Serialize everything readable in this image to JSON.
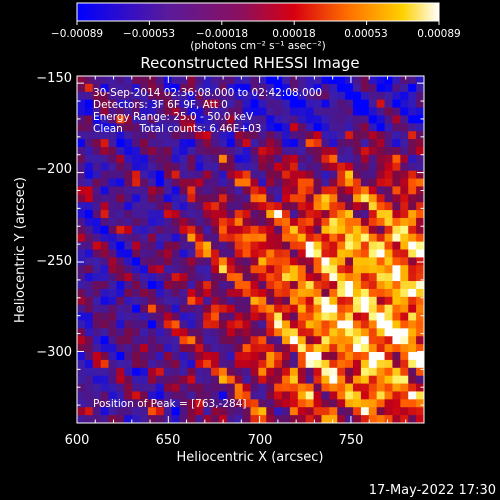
{
  "chart_data": {
    "type": "heatmap",
    "title": "Reconstructed RHESSI Image",
    "xlabel": "Heliocentric X (arcsec)",
    "ylabel": "Heliocentric Y (arcsec)",
    "xlim": [
      600,
      790
    ],
    "ylim": [
      -340,
      -146
    ],
    "xticks": [
      "600",
      "650",
      "700",
      "750"
    ],
    "yticks": [
      "−150",
      "−200",
      "−250",
      "−300"
    ],
    "colorbar": {
      "ticks": [
        "−0.00089",
        "−0.00053",
        "−0.00018",
        "0.00018",
        "0.00053",
        "0.00089"
      ],
      "unit_label": "(photons cm⁻² s⁻¹ asec⁻²)",
      "range": [
        -0.00089,
        0.00089
      ],
      "colormap": "blue-purple-red-orange-yellow-white"
    },
    "annotations": [
      "30-Sep-2014 02:36:08.000 to 02:42:08.000",
      "Detectors: 3F 6F 9F, Att 0",
      "Energy Range: 25.0 - 50.0 keV",
      "Clean     Total counts: 6.46E+03"
    ],
    "peak_label": "Position of Peak = [763,-284]",
    "peak": [
      763,
      -284
    ],
    "grid": false
  },
  "timestamp": "17-May-2022 17:30"
}
